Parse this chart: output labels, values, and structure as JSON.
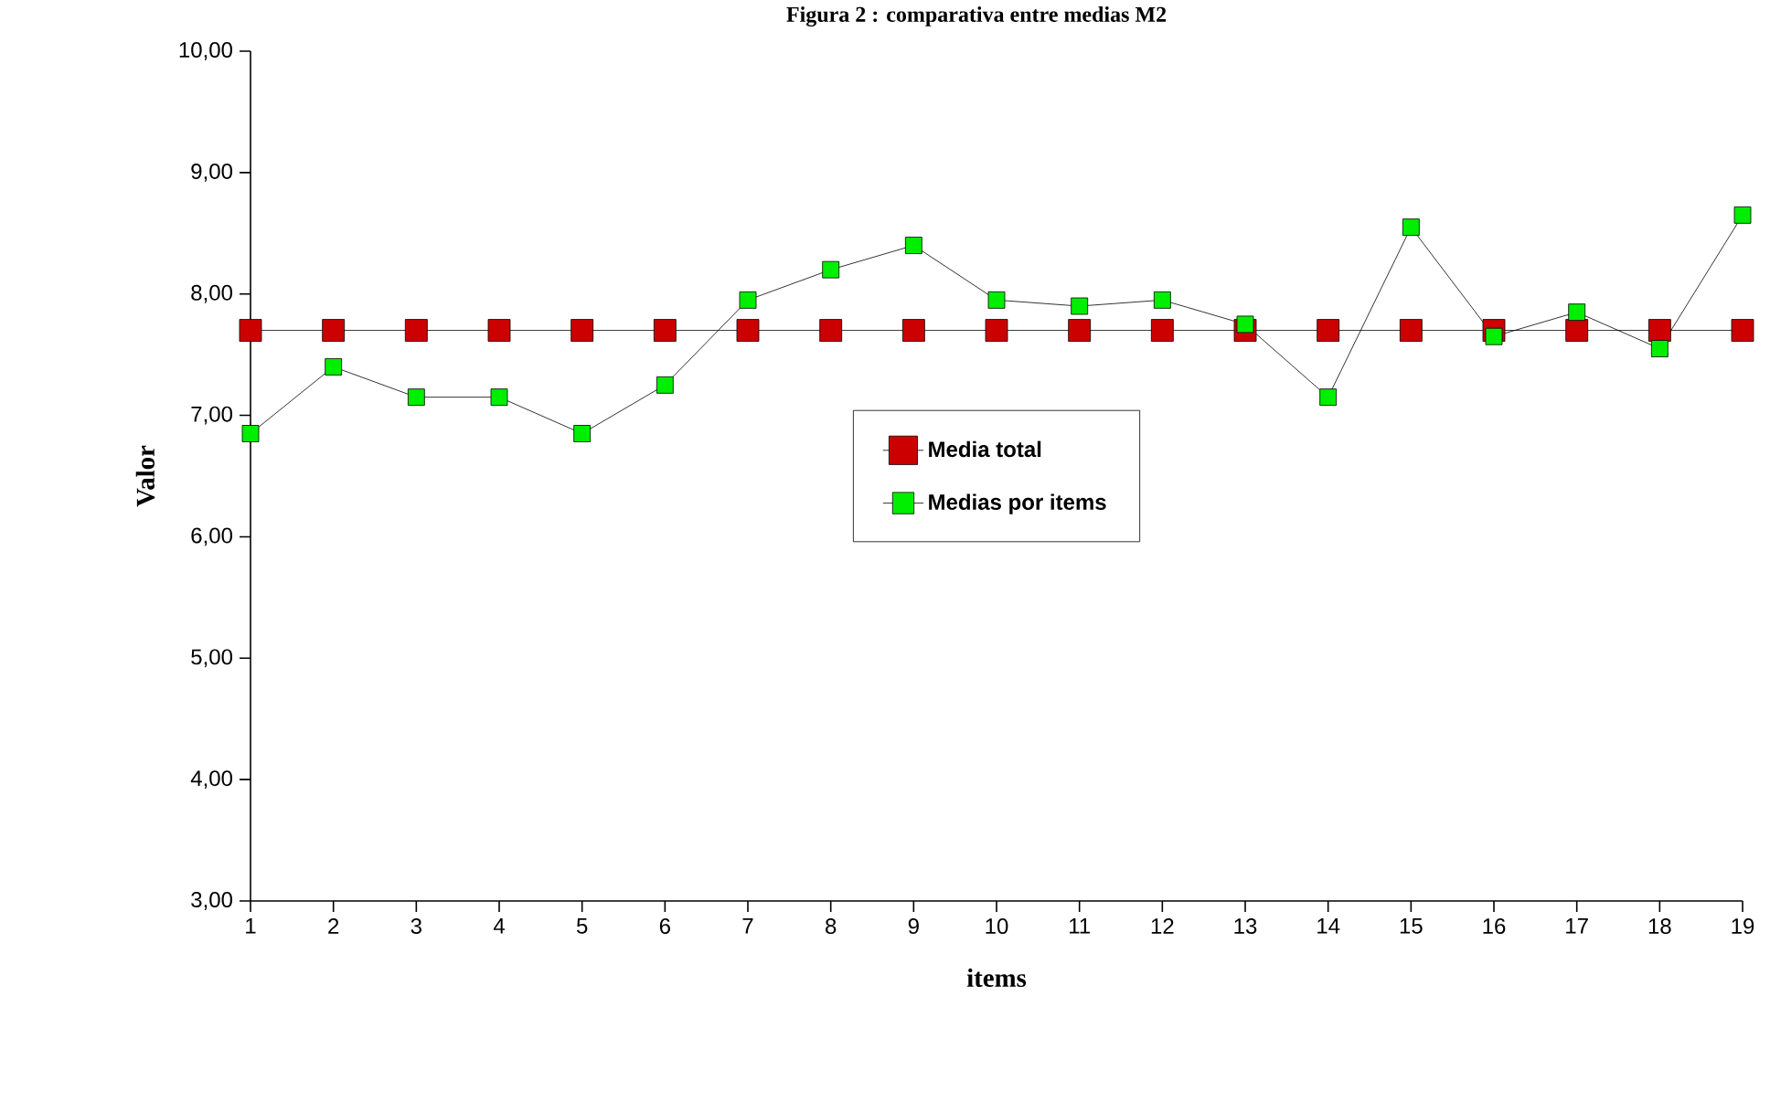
{
  "chart_data": {
    "type": "line",
    "title": "Figura 2 : comparativa entre medias M2",
    "xlabel": "items",
    "ylabel": "Valor",
    "categories": [
      "1",
      "2",
      "3",
      "4",
      "5",
      "6",
      "7",
      "8",
      "9",
      "10",
      "11",
      "12",
      "13",
      "14",
      "15",
      "16",
      "17",
      "18",
      "19"
    ],
    "series": [
      {
        "name": "Media total",
        "color": "#cc0000",
        "values": [
          7.7,
          7.7,
          7.7,
          7.7,
          7.7,
          7.7,
          7.7,
          7.7,
          7.7,
          7.7,
          7.7,
          7.7,
          7.7,
          7.7,
          7.7,
          7.7,
          7.7,
          7.7,
          7.7
        ]
      },
      {
        "name": "Medias por items",
        "color": "#00ee00",
        "values": [
          6.85,
          7.4,
          7.15,
          7.15,
          6.85,
          7.25,
          7.95,
          8.2,
          8.4,
          7.95,
          7.9,
          7.95,
          7.75,
          7.15,
          8.55,
          7.65,
          7.85,
          7.55,
          8.65
        ]
      }
    ],
    "ylim": [
      3,
      10
    ],
    "yticks": [
      {
        "value": 3,
        "label": "3,00"
      },
      {
        "value": 4,
        "label": "4,00"
      },
      {
        "value": 5,
        "label": "5,00"
      },
      {
        "value": 6,
        "label": "6,00"
      },
      {
        "value": 7,
        "label": "7,00"
      },
      {
        "value": 8,
        "label": "8,00"
      },
      {
        "value": 9,
        "label": "9,00"
      },
      {
        "value": 10,
        "label": "10,00"
      }
    ],
    "marker": "square",
    "line_style": "solid",
    "legend": "center",
    "grid": false
  }
}
